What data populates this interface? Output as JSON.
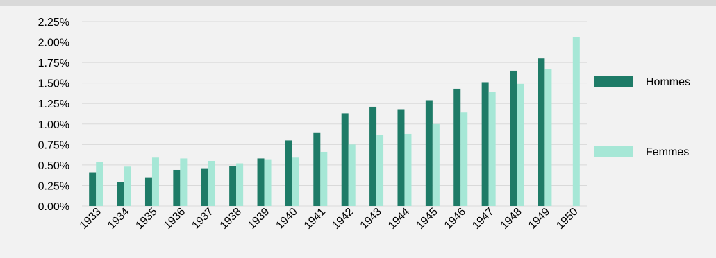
{
  "chart_data": {
    "type": "bar",
    "categories": [
      "1933",
      "1934",
      "1935",
      "1936",
      "1937",
      "1938",
      "1939",
      "1940",
      "1941",
      "1942",
      "1943",
      "1944",
      "1945",
      "1946",
      "1947",
      "1948",
      "1949",
      "1950"
    ],
    "series": [
      {
        "name": "Hommes",
        "color": "#1e7b67",
        "values": [
          0.41,
          0.29,
          0.35,
          0.44,
          0.46,
          0.49,
          0.58,
          0.8,
          0.89,
          1.13,
          1.21,
          1.18,
          1.29,
          1.43,
          1.51,
          1.65,
          1.8,
          null
        ]
      },
      {
        "name": "Femmes",
        "color": "#a6e7d6",
        "values": [
          0.54,
          0.48,
          0.59,
          0.58,
          0.55,
          0.52,
          0.57,
          0.59,
          0.66,
          0.75,
          0.87,
          0.88,
          1.0,
          1.14,
          1.39,
          1.49,
          1.67,
          2.06
        ]
      }
    ],
    "yticks": [
      "0.00%",
      "0.25%",
      "0.50%",
      "0.75%",
      "1.00%",
      "1.25%",
      "1.50%",
      "1.75%",
      "2.00%",
      "2.25%"
    ],
    "ylim": [
      0,
      2.25
    ],
    "y_unit": "percent",
    "grid": true,
    "legend_position": "right",
    "title": "",
    "xlabel": "",
    "ylabel": ""
  }
}
